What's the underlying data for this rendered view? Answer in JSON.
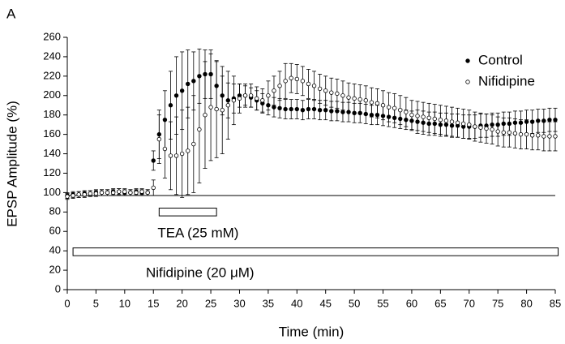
{
  "chart_data": {
    "type": "scatter",
    "panel_label": "A",
    "x_label": "Time (min)",
    "y_label": "EPSP Amplitude (%)",
    "x": [
      0,
      1,
      2,
      3,
      4,
      5,
      6,
      7,
      8,
      9,
      10,
      11,
      12,
      13,
      14,
      15,
      16,
      17,
      18,
      19,
      20,
      21,
      22,
      23,
      24,
      25,
      26,
      27,
      28,
      29,
      30,
      31,
      32,
      33,
      34,
      35,
      36,
      37,
      38,
      39,
      40,
      41,
      42,
      43,
      44,
      45,
      46,
      47,
      48,
      49,
      50,
      51,
      52,
      53,
      54,
      55,
      56,
      57,
      58,
      59,
      60,
      61,
      62,
      63,
      64,
      65,
      66,
      67,
      68,
      69,
      70,
      71,
      72,
      73,
      74,
      75,
      76,
      77,
      78,
      79,
      80,
      81,
      82,
      83,
      84,
      85
    ],
    "series": [
      {
        "name": "Control",
        "color": "#000000",
        "marker": "filled",
        "values": [
          97,
          98,
          98,
          99,
          99,
          100,
          100,
          100,
          101,
          101,
          100,
          100,
          101,
          100,
          100,
          133,
          160,
          175,
          190,
          200,
          205,
          212,
          215,
          220,
          222,
          222,
          210,
          200,
          195,
          197,
          200,
          200,
          198,
          195,
          192,
          190,
          188,
          187,
          186,
          186,
          186,
          185,
          186,
          186,
          185,
          185,
          184,
          184,
          183,
          183,
          182,
          182,
          181,
          180,
          180,
          179,
          178,
          177,
          176,
          175,
          174,
          173,
          172,
          171,
          171,
          170,
          170,
          169,
          169,
          168,
          168,
          168,
          169,
          169,
          170,
          170,
          171,
          171,
          172,
          172,
          173,
          173,
          174,
          174,
          175,
          175
        ],
        "errors": [
          3,
          3,
          3,
          3,
          3,
          3,
          3,
          3,
          3,
          3,
          3,
          3,
          3,
          3,
          3,
          10,
          25,
          30,
          35,
          40,
          40,
          35,
          30,
          28,
          25,
          25,
          25,
          20,
          18,
          15,
          12,
          10,
          10,
          10,
          10,
          10,
          10,
          10,
          10,
          10,
          10,
          10,
          10,
          10,
          10,
          10,
          10,
          10,
          10,
          10,
          10,
          10,
          10,
          10,
          10,
          10,
          10,
          10,
          10,
          10,
          10,
          12,
          12,
          12,
          12,
          12,
          12,
          12,
          12,
          12,
          12,
          12,
          12,
          12,
          12,
          12,
          12,
          12,
          12,
          12,
          12,
          12,
          12,
          12,
          12,
          12
        ]
      },
      {
        "name": "Nifidipine",
        "color": "#000000",
        "marker": "open",
        "values": [
          96,
          97,
          98,
          98,
          99,
          99,
          100,
          100,
          100,
          101,
          101,
          100,
          100,
          101,
          100,
          105,
          155,
          145,
          138,
          138,
          140,
          143,
          150,
          165,
          180,
          188,
          186,
          185,
          190,
          195,
          197,
          200,
          200,
          197,
          195,
          200,
          205,
          210,
          215,
          218,
          217,
          215,
          212,
          210,
          207,
          205,
          203,
          202,
          200,
          198,
          197,
          196,
          195,
          193,
          192,
          190,
          188,
          187,
          185,
          183,
          180,
          179,
          178,
          177,
          176,
          175,
          174,
          173,
          172,
          171,
          170,
          168,
          167,
          166,
          165,
          163,
          162,
          162,
          161,
          160,
          160,
          159,
          159,
          158,
          158,
          158
        ],
        "errors": [
          3,
          3,
          3,
          3,
          3,
          3,
          3,
          3,
          3,
          3,
          3,
          3,
          3,
          3,
          3,
          8,
          25,
          30,
          35,
          40,
          45,
          45,
          50,
          55,
          55,
          55,
          50,
          45,
          35,
          25,
          15,
          12,
          12,
          12,
          12,
          15,
          15,
          15,
          18,
          15,
          15,
          15,
          15,
          15,
          15,
          15,
          15,
          15,
          15,
          15,
          15,
          15,
          15,
          15,
          15,
          15,
          15,
          15,
          15,
          15,
          15,
          15,
          15,
          15,
          15,
          15,
          15,
          15,
          15,
          15,
          15,
          15,
          15,
          15,
          15,
          15,
          15,
          15,
          15,
          15,
          15,
          15,
          15,
          15,
          15,
          15
        ]
      }
    ],
    "reference_line": 97,
    "annotations": [
      {
        "text": "TEA (25 mM)",
        "x": [
          16,
          26
        ],
        "y": [
          76,
          84
        ]
      },
      {
        "text": "Nifidipine (20 μM)",
        "x": [
          1,
          85.5
        ],
        "y": [
          35,
          43
        ]
      }
    ],
    "xlim": [
      0,
      85
    ],
    "xticks": [
      0,
      5,
      10,
      15,
      20,
      25,
      30,
      35,
      40,
      45,
      50,
      55,
      60,
      65,
      70,
      75,
      80,
      85
    ],
    "ylim": [
      0,
      260
    ],
    "yticks": [
      0,
      20,
      40,
      60,
      80,
      100,
      120,
      140,
      160,
      180,
      200,
      220,
      240,
      260
    ],
    "legend": "top-right",
    "grid": false
  }
}
